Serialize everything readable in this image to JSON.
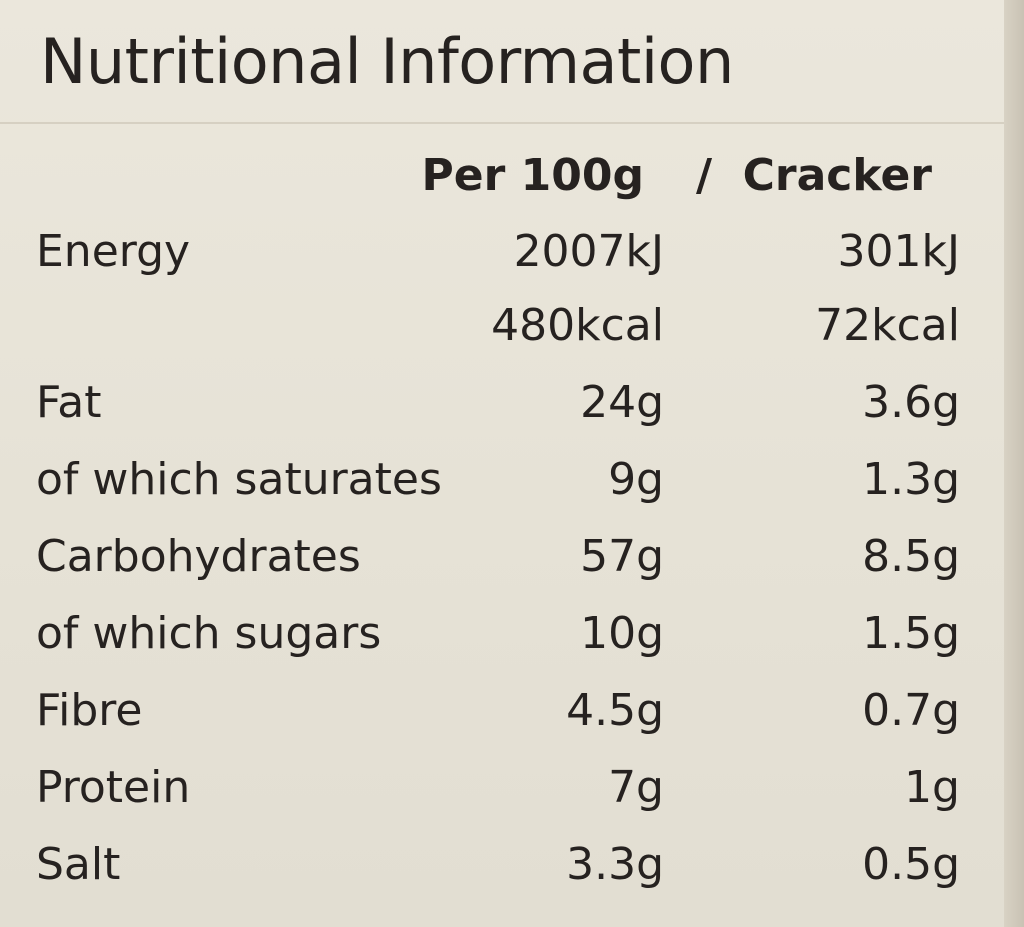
{
  "title": "Nutritional Information",
  "header": {
    "per_100g": "Per 100g",
    "separator": "/",
    "per_cracker": "Cracker"
  },
  "rows": [
    {
      "label": "Energy",
      "per_100g": "2007kJ",
      "per_cracker": "301kJ"
    },
    {
      "label": "",
      "per_100g": "480kcal",
      "per_cracker": "72kcal"
    },
    {
      "label": "Fat",
      "per_100g": "24g",
      "per_cracker": "3.6g"
    },
    {
      "label": "of which saturates",
      "per_100g": "9g",
      "per_cracker": "1.3g"
    },
    {
      "label": "Carbohydrates",
      "per_100g": "57g",
      "per_cracker": "8.5g"
    },
    {
      "label": "of which sugars",
      "per_100g": "10g",
      "per_cracker": "1.5g"
    },
    {
      "label": "Fibre",
      "per_100g": "4.5g",
      "per_cracker": "0.7g"
    },
    {
      "label": "Protein",
      "per_100g": "7g",
      "per_cracker": "1g"
    },
    {
      "label": "Salt",
      "per_100g": "3.3g",
      "per_cracker": "0.5g"
    }
  ]
}
